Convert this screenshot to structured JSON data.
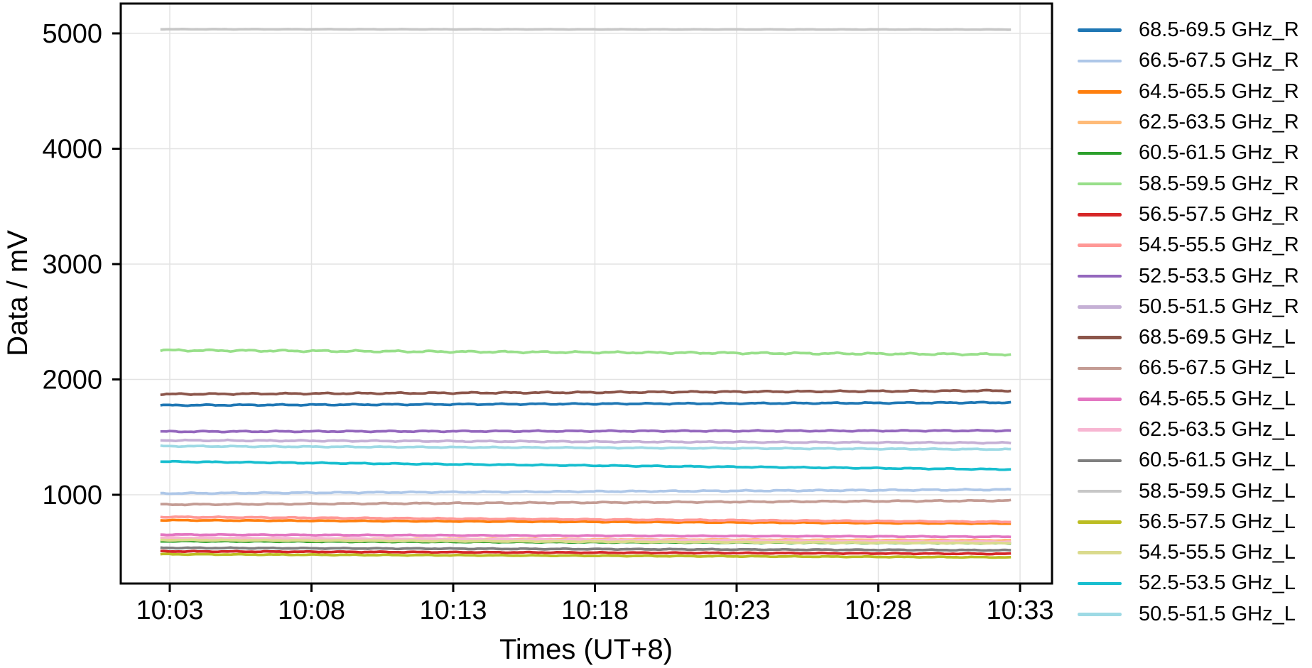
{
  "figure": {
    "background": "#ffffff",
    "text_color": "#000000",
    "grid_color": "#e3e3e3"
  },
  "chart_data": {
    "type": "line",
    "title": "",
    "xlabel": "Times (UT+8)",
    "ylabel": "Data / mV",
    "grid": true,
    "legend_position": "right outside",
    "x_axis": {
      "tick_labels": [
        "10:03",
        "10:08",
        "10:13",
        "10:18",
        "10:23",
        "10:28",
        "10:33"
      ],
      "tick_minutes": [
        3,
        8,
        13,
        18,
        23,
        28,
        33
      ],
      "data_start_minute": 2.67,
      "data_end_minute": 32.68,
      "xlim_minutes": [
        1.27,
        34.13
      ]
    },
    "y_axis": {
      "ticks": [
        1000,
        2000,
        3000,
        4000,
        5000
      ],
      "ylim": [
        230,
        5260
      ]
    },
    "series": [
      {
        "name": "68.5-69.5 GHz_R",
        "color": "#1f77b4",
        "start": 1776,
        "end": 1800,
        "noise": 6
      },
      {
        "name": "66.5-67.5 GHz_R",
        "color": "#aec7e8",
        "start": 1012,
        "end": 1045,
        "noise": 6
      },
      {
        "name": "64.5-65.5 GHz_R",
        "color": "#ff7f0e",
        "start": 780,
        "end": 751,
        "noise": 4
      },
      {
        "name": "62.5-63.5 GHz_R",
        "color": "#ffbb78",
        "start": 624,
        "end": 605,
        "noise": 4
      },
      {
        "name": "60.5-61.5 GHz_R",
        "color": "#2ca02c",
        "start": 598,
        "end": 580,
        "noise": 4
      },
      {
        "name": "58.5-59.5 GHz_R",
        "color": "#98df8a",
        "start": 2253,
        "end": 2217,
        "noise": 9
      },
      {
        "name": "56.5-57.5 GHz_R",
        "color": "#d62728",
        "start": 510,
        "end": 488,
        "noise": 4
      },
      {
        "name": "54.5-55.5 GHz_R",
        "color": "#ff9896",
        "start": 808,
        "end": 765,
        "noise": 5
      },
      {
        "name": "52.5-53.5 GHz_R",
        "color": "#9467bd",
        "start": 1548,
        "end": 1556,
        "noise": 6
      },
      {
        "name": "50.5-51.5 GHz_R",
        "color": "#c5b0d5",
        "start": 1472,
        "end": 1450,
        "noise": 6
      },
      {
        "name": "68.5-69.5 GHz_L",
        "color": "#8c564b",
        "start": 1872,
        "end": 1903,
        "noise": 7
      },
      {
        "name": "66.5-67.5 GHz_L",
        "color": "#c49c94",
        "start": 915,
        "end": 950,
        "noise": 6
      },
      {
        "name": "64.5-65.5 GHz_L",
        "color": "#e377c2",
        "start": 655,
        "end": 636,
        "noise": 4
      },
      {
        "name": "62.5-63.5 GHz_L",
        "color": "#f7b6d2",
        "start": 628,
        "end": 592,
        "noise": 4
      },
      {
        "name": "60.5-61.5 GHz_L",
        "color": "#7f7f7f",
        "start": 540,
        "end": 519,
        "noise": 4
      },
      {
        "name": "58.5-59.5 GHz_L",
        "color": "#c7c7c7",
        "start": 5036,
        "end": 5033,
        "noise": 2
      },
      {
        "name": "56.5-57.5 GHz_L",
        "color": "#bcbd22",
        "start": 485,
        "end": 458,
        "noise": 4
      },
      {
        "name": "54.5-55.5 GHz_L",
        "color": "#dbdb8d",
        "start": 608,
        "end": 580,
        "noise": 4
      },
      {
        "name": "52.5-53.5 GHz_L",
        "color": "#17becf",
        "start": 1288,
        "end": 1220,
        "noise": 5
      },
      {
        "name": "50.5-51.5 GHz_L",
        "color": "#9edae5",
        "start": 1422,
        "end": 1394,
        "noise": 5
      }
    ]
  }
}
